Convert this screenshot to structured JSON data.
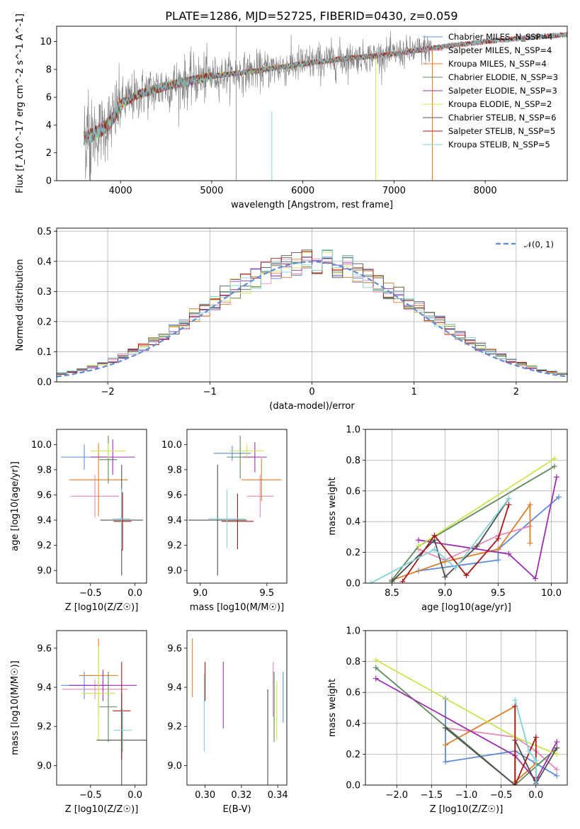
{
  "colors": {
    "chabrier_miles": "#5f8cd8",
    "salpeter_miles": "#e88ab8",
    "kroupa_miles": "#e07d2a",
    "chabrier_elodie": "#5d8a5d",
    "salpeter_elodie": "#9b2fae",
    "kroupa_elodie": "#c8e64a",
    "chabrier_stelib": "#505050",
    "salpeter_stelib": "#a81818",
    "kroupa_stelib": "#7fd4d8",
    "data": "#808080",
    "normal": "#5f8cd8"
  },
  "chart_data": [
    {
      "id": "spectrum",
      "type": "line",
      "title": "PLATE=1286, MJD=52725, FIBERID=0430, z=0.059",
      "xlabel": "wavelength [Angstrom, rest frame]",
      "ylabel": "Flux [f_λ10^-17 erg cm^-2 s^-1 A^-1]",
      "xlim": [
        3300,
        8900
      ],
      "ylim": [
        0,
        11.1
      ],
      "xticks": [
        "4000",
        "5000",
        "6000",
        "7000",
        "8000"
      ],
      "yticks": [
        "0",
        "2",
        "4",
        "6",
        "8",
        "10"
      ],
      "legend_position": "top-right",
      "legend": [
        "Chabrier MILES, N_SSP=4",
        "Salpeter MILES, N_SSP=4",
        "Kroupa MILES, N_SSP=4",
        "Chabrier ELODIE, N_SSP=3",
        "Salpeter ELODIE, N_SSP=3",
        "Kroupa ELODIE, N_SSP=2",
        "Chabrier STELIB, N_SSP=6",
        "Salpeter STELIB, N_SSP=5",
        "Kroupa STELIB, N_SSP=5"
      ],
      "continuum_x": [
        3600,
        3800,
        3900,
        4000,
        4200,
        4500,
        5000,
        5500,
        6000,
        6500,
        7000,
        7500,
        8000,
        8500,
        8900
      ],
      "continuum_y": [
        3.0,
        3.7,
        4.3,
        5.5,
        6.2,
        6.8,
        7.5,
        7.9,
        8.4,
        8.8,
        9.1,
        9.6,
        10.0,
        10.3,
        10.5
      ]
    },
    {
      "id": "residual-histogram",
      "type": "histogram",
      "xlabel": "(data-model)/error",
      "ylabel": "Normed distribution",
      "xlim": [
        -2.5,
        2.5
      ],
      "ylim": [
        0,
        0.51
      ],
      "xticks": [
        "−2",
        "−1",
        "0",
        "1",
        "2"
      ],
      "yticks": [
        "0.0",
        "0.1",
        "0.2",
        "0.3",
        "0.4",
        "0.5"
      ],
      "grid": true,
      "legend_position": "top-right",
      "legend": [
        "𝒩(0, 1)"
      ],
      "bins": 50
    },
    {
      "id": "age-vs-z",
      "type": "errorbar",
      "xlabel": "Z [log10(Z/Z☉)]",
      "ylabel": "age  [log10(age/yr)]",
      "xlim": [
        -0.88,
        0.13
      ],
      "ylim": [
        8.9,
        10.12
      ],
      "xticks": [
        "−0.5",
        "0.0"
      ],
      "yticks": [
        "9.0",
        "9.2",
        "9.4",
        "9.6",
        "9.8",
        "10.0"
      ],
      "points": [
        {
          "series": "chabrier_miles",
          "x": -0.57,
          "xerr": 0.26,
          "y": 9.9,
          "yerr": 0.1
        },
        {
          "series": "salpeter_miles",
          "x": -0.45,
          "xerr": 0.27,
          "y": 9.59,
          "yerr": 0.17
        },
        {
          "series": "kroupa_miles",
          "x": -0.41,
          "xerr": 0.33,
          "y": 9.72,
          "yerr": 0.29
        },
        {
          "series": "chabrier_elodie",
          "x": -0.3,
          "xerr": 0.1,
          "y": 9.88,
          "yerr": 0.19
        },
        {
          "series": "salpeter_elodie",
          "x": -0.25,
          "xerr": 0.25,
          "y": 9.9,
          "yerr": 0.14
        },
        {
          "series": "kroupa_elodie",
          "x": -0.3,
          "xerr": 0.2,
          "y": 9.95,
          "yerr": 0.06
        },
        {
          "series": "chabrier_stelib",
          "x": -0.15,
          "xerr": 0.24,
          "y": 9.4,
          "yerr": 0.44
        },
        {
          "series": "salpeter_stelib",
          "x": -0.14,
          "xerr": 0.1,
          "y": 9.39,
          "yerr": 0.23
        },
        {
          "series": "kroupa_stelib",
          "x": -0.15,
          "xerr": 0.1,
          "y": 9.41,
          "yerr": 0.24
        }
      ]
    },
    {
      "id": "age-vs-mass",
      "type": "errorbar",
      "xlabel": "mass [log10(M/M☉)]",
      "ylabel": "",
      "xlim": [
        8.9,
        9.65
      ],
      "ylim": [
        8.9,
        10.12
      ],
      "xticks": [
        "9.0",
        "9.5"
      ],
      "yticks": [
        "9.0",
        "9.2",
        "9.4",
        "9.6",
        "9.8",
        "10.0"
      ],
      "points": [
        {
          "series": "chabrier_miles",
          "x": 9.24,
          "xerr": 0.14,
          "y": 9.93,
          "yerr": 0.06
        },
        {
          "series": "salpeter_miles",
          "x": 9.45,
          "xerr": 0.1,
          "y": 9.59,
          "yerr": 0.17
        },
        {
          "series": "kroupa_miles",
          "x": 9.46,
          "xerr": 0.15,
          "y": 9.72,
          "yerr": 0.17
        },
        {
          "series": "chabrier_elodie",
          "x": 9.3,
          "xerr": 0.1,
          "y": 9.9,
          "yerr": 0.17
        },
        {
          "series": "salpeter_elodie",
          "x": 9.41,
          "xerr": 0.09,
          "y": 9.9,
          "yerr": 0.12
        },
        {
          "series": "kroupa_elodie",
          "x": 9.35,
          "xerr": 0.13,
          "y": 9.95,
          "yerr": 0.05
        },
        {
          "series": "chabrier_stelib",
          "x": 9.13,
          "xerr": 0.22,
          "y": 9.4,
          "yerr": 0.44
        },
        {
          "series": "salpeter_stelib",
          "x": 9.28,
          "xerr": 0.12,
          "y": 9.39,
          "yerr": 0.22
        },
        {
          "series": "kroupa_stelib",
          "x": 9.2,
          "xerr": 0.14,
          "y": 9.41,
          "yerr": 0.23
        }
      ]
    },
    {
      "id": "weight-vs-age",
      "type": "line",
      "xlabel": "age  [log10(age/yr)]",
      "ylabel": "mass weight",
      "xlim": [
        8.25,
        10.15
      ],
      "ylim": [
        0,
        1.0
      ],
      "xticks": [
        "8.5",
        "9.0",
        "9.5",
        "10.0"
      ],
      "yticks": [
        "0.0",
        "0.2",
        "0.4",
        "0.6",
        "0.8",
        "1.0"
      ],
      "grid": true,
      "series": [
        {
          "series": "chabrier_miles",
          "x": [
            8.75,
            9.5,
            9.5,
            10.07
          ],
          "y": [
            0.08,
            0.15,
            0.22,
            0.56
          ]
        },
        {
          "series": "salpeter_miles",
          "x": [
            8.75,
            9.0,
            9.5,
            9.8
          ],
          "y": [
            0.22,
            0.15,
            0.31,
            0.37
          ]
        },
        {
          "series": "kroupa_miles",
          "x": [
            8.5,
            9.0,
            9.5,
            9.8,
            9.8
          ],
          "y": [
            0.02,
            0.14,
            0.22,
            0.51,
            0.26
          ]
        },
        {
          "series": "chabrier_elodie",
          "x": [
            8.5,
            8.75,
            10.03
          ],
          "y": [
            0.02,
            0.24,
            0.76
          ]
        },
        {
          "series": "salpeter_elodie",
          "x": [
            8.75,
            9.6,
            9.85,
            10.05
          ],
          "y": [
            0.28,
            0.19,
            0.03,
            0.69
          ]
        },
        {
          "series": "kroupa_elodie",
          "x": [
            8.75,
            10.03
          ],
          "y": [
            0.24,
            0.81
          ]
        },
        {
          "series": "chabrier_stelib",
          "x": [
            8.5,
            8.9,
            9.0,
            9.3,
            9.6
          ],
          "y": [
            0.01,
            0.28,
            0.04,
            0.24,
            0.55
          ]
        },
        {
          "series": "salpeter_stelib",
          "x": [
            8.6,
            8.9,
            9.2,
            9.5,
            9.6
          ],
          "y": [
            0.01,
            0.31,
            0.05,
            0.29,
            0.51
          ]
        },
        {
          "series": "kroupa_stelib",
          "x": [
            8.3,
            8.9,
            9.1,
            9.6
          ],
          "y": [
            0.0,
            0.22,
            0.1,
            0.55
          ]
        }
      ]
    },
    {
      "id": "mass-vs-z",
      "type": "errorbar",
      "xlabel": "Z [log10(Z/Z☉)]",
      "ylabel": "mass [log10(M/M☉)]",
      "xlim": [
        -0.88,
        0.13
      ],
      "ylim": [
        8.9,
        9.69
      ],
      "xticks": [
        "−0.5",
        "0.0"
      ],
      "yticks": [
        "9.0",
        "9.2",
        "9.4",
        "9.6"
      ],
      "points": [
        {
          "series": "chabrier_miles",
          "x": -0.57,
          "xerr": 0.26,
          "y": 9.41,
          "yerr": 0.07
        },
        {
          "series": "salpeter_miles",
          "x": -0.45,
          "xerr": 0.37,
          "y": 9.39,
          "yerr": 0.05
        },
        {
          "series": "kroupa_miles",
          "x": -0.41,
          "xerr": 0.22,
          "y": 9.46,
          "yerr": 0.19
        },
        {
          "series": "chabrier_elodie",
          "x": -0.3,
          "xerr": 0.1,
          "y": 9.3,
          "yerr": 0.18
        },
        {
          "series": "salpeter_elodie",
          "x": -0.36,
          "xerr": 0.38,
          "y": 9.41,
          "yerr": 0.08
        },
        {
          "series": "kroupa_elodie",
          "x": -0.41,
          "xerr": 0.19,
          "y": 9.37,
          "yerr": 0.24
        },
        {
          "series": "chabrier_stelib",
          "x": -0.15,
          "xerr": 0.28,
          "y": 9.13,
          "yerr": 0.24
        },
        {
          "series": "salpeter_stelib",
          "x": -0.15,
          "xerr": 0.1,
          "y": 9.28,
          "yerr": 0.25
        },
        {
          "series": "kroupa_stelib",
          "x": -0.14,
          "xerr": 0.1,
          "y": 9.18,
          "yerr": 0.11
        }
      ]
    },
    {
      "id": "mass-vs-ebv",
      "type": "errorbar",
      "xlabel": "E(B-V)",
      "ylabel": "",
      "xlim": [
        0.29,
        0.345
      ],
      "ylim": [
        8.9,
        9.69
      ],
      "xticks": [
        "0.30",
        "0.32",
        "0.34"
      ],
      "yticks": [
        "9.0",
        "9.2",
        "9.4",
        "9.6"
      ],
      "points": [
        {
          "series": "chabrier_miles",
          "x": 0.343,
          "xerr": 0,
          "y": 9.35,
          "yerr": 0.13
        },
        {
          "series": "salpeter_miles",
          "x": 0.3375,
          "xerr": 0,
          "y": 9.39,
          "yerr": 0.14
        },
        {
          "series": "kroupa_miles",
          "x": 0.293,
          "xerr": 0,
          "y": 9.5,
          "yerr": 0.15
        },
        {
          "series": "chabrier_elodie",
          "x": 0.338,
          "xerr": 0,
          "y": 9.3,
          "yerr": 0.18
        },
        {
          "series": "salpeter_elodie",
          "x": 0.31,
          "xerr": 0,
          "y": 9.36,
          "yerr": 0.17
        },
        {
          "series": "kroupa_elodie",
          "x": 0.3395,
          "xerr": 0,
          "y": 9.28,
          "yerr": 0.15
        },
        {
          "series": "chabrier_stelib",
          "x": 0.3345,
          "xerr": 0,
          "y": 9.11,
          "yerr": 0.28
        },
        {
          "series": "salpeter_stelib",
          "x": 0.3,
          "xerr": 0,
          "y": 9.43,
          "yerr": 0.1
        },
        {
          "series": "kroupa_stelib",
          "x": 0.2995,
          "xerr": 0,
          "y": 9.27,
          "yerr": 0.2
        }
      ]
    },
    {
      "id": "weight-vs-z",
      "type": "line",
      "xlabel": "Z [log10(Z/Z☉)]",
      "ylabel": "mass weight",
      "xlim": [
        -2.45,
        0.45
      ],
      "ylim": [
        0,
        1.0
      ],
      "xticks": [
        "−2.0",
        "−1.5",
        "−1.0",
        "−0.5",
        "0.0"
      ],
      "yticks": [
        "0.0",
        "0.2",
        "0.4",
        "0.6",
        "0.8",
        "1.0"
      ],
      "grid": true,
      "series": [
        {
          "series": "chabrier_miles",
          "x": [
            -1.3,
            -1.3,
            -0.3,
            0.0,
            0.3
          ],
          "y": [
            0.56,
            0.15,
            0.22,
            0.14,
            0.06
          ]
        },
        {
          "series": "salpeter_miles",
          "x": [
            -1.3,
            -0.3,
            0.0,
            0.3
          ],
          "y": [
            0.37,
            0.31,
            0.22,
            0.1
          ]
        },
        {
          "series": "kroupa_miles",
          "x": [
            -1.3,
            -0.3,
            -0.3,
            0.0
          ],
          "y": [
            0.26,
            0.51,
            0.02,
            0.14
          ]
        },
        {
          "series": "chabrier_elodie",
          "x": [
            -2.3,
            -0.3,
            0.3
          ],
          "y": [
            0.76,
            0.0,
            0.24
          ]
        },
        {
          "series": "salpeter_elodie",
          "x": [
            -2.3,
            -0.3,
            0.0,
            0.3
          ],
          "y": [
            0.69,
            0.19,
            0.03,
            0.28
          ]
        },
        {
          "series": "kroupa_elodie",
          "x": [
            -2.3,
            -0.3,
            0.3
          ],
          "y": [
            0.81,
            0.31,
            0.2
          ]
        },
        {
          "series": "chabrier_stelib",
          "x": [
            -1.3,
            -0.3,
            -0.3,
            0.0,
            0.3
          ],
          "y": [
            0.37,
            0.0,
            0.29,
            0.01,
            0.24
          ]
        },
        {
          "series": "salpeter_stelib",
          "x": [
            -0.3,
            -0.3,
            0.0,
            0.0
          ],
          "y": [
            0.51,
            0.0,
            0.31,
            0.05
          ]
        },
        {
          "series": "kroupa_stelib",
          "x": [
            -0.3,
            -0.1,
            0.0,
            0.0
          ],
          "y": [
            0.55,
            0.22,
            0.16,
            0.0
          ]
        }
      ]
    }
  ]
}
